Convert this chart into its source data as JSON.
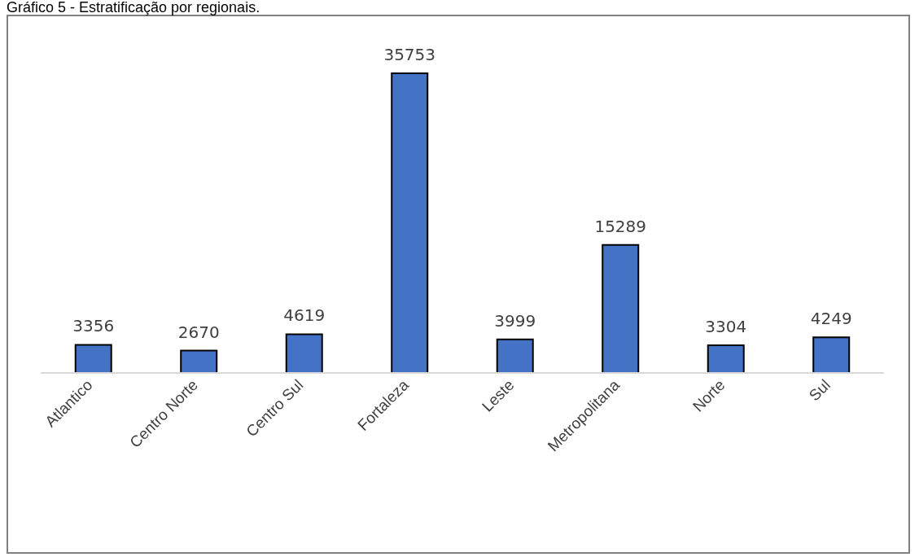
{
  "chart_data": {
    "type": "bar",
    "title": "Gráfico 5 - Estratificação por regionais.",
    "categories": [
      "Atlantico",
      "Centro Norte",
      "Centro Sul",
      "Fortaleza",
      "Leste",
      "Metropolitana",
      "Norte",
      "Sul"
    ],
    "values": [
      3356,
      2670,
      4619,
      35753,
      3999,
      15289,
      3304,
      4249
    ],
    "color": "#4472c4",
    "data_labels": true,
    "grid": false,
    "legend": false
  }
}
